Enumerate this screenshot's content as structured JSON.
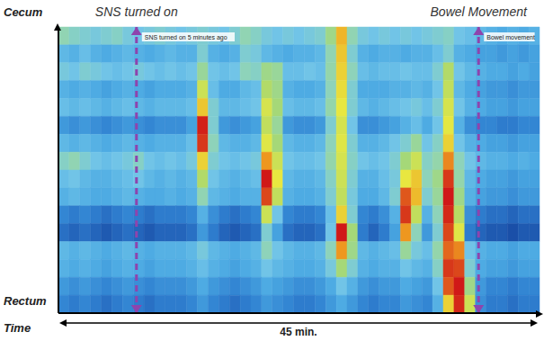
{
  "chart_data": {
    "type": "heatmap",
    "xlabel": "Time",
    "duration_label": "45 min.",
    "y_labels": {
      "top": "Cecum",
      "bottom": "Rectum"
    },
    "xlim": [
      0,
      45
    ],
    "ylim": [
      0,
      16
    ],
    "tick_labels": false,
    "annotations": [
      {
        "x": 7.3,
        "text": "SNS turned on",
        "note": "SNS turned on 5 minutes ago"
      },
      {
        "x": 39.3,
        "text": "Bowel Movement",
        "note": "Bowel movement"
      }
    ],
    "cells": [
      [
        45,
        42,
        40,
        38,
        40,
        42,
        38,
        36,
        38,
        40,
        38,
        36,
        38,
        40,
        38,
        36,
        40,
        45,
        42,
        38,
        36,
        38,
        36,
        38,
        40,
        50,
        75,
        45,
        38,
        36,
        38,
        36,
        38,
        36,
        38,
        40,
        42,
        36,
        34,
        32,
        30,
        28,
        30,
        28,
        30
      ],
      [
        32,
        30,
        34,
        30,
        28,
        30,
        32,
        30,
        28,
        30,
        32,
        30,
        30,
        40,
        30,
        28,
        30,
        40,
        38,
        32,
        30,
        28,
        30,
        30,
        32,
        45,
        72,
        40,
        30,
        28,
        30,
        30,
        28,
        30,
        30,
        34,
        40,
        30,
        28,
        26,
        26,
        24,
        26,
        24,
        26
      ],
      [
        38,
        36,
        40,
        38,
        36,
        34,
        36,
        38,
        36,
        34,
        36,
        34,
        36,
        48,
        36,
        34,
        36,
        44,
        42,
        50,
        48,
        34,
        34,
        36,
        34,
        46,
        70,
        44,
        34,
        32,
        34,
        34,
        36,
        34,
        34,
        40,
        55,
        36,
        32,
        30,
        28,
        28,
        26,
        28,
        26
      ],
      [
        30,
        28,
        30,
        28,
        26,
        28,
        30,
        28,
        26,
        28,
        28,
        28,
        30,
        60,
        34,
        28,
        28,
        32,
        34,
        55,
        50,
        30,
        28,
        28,
        30,
        44,
        68,
        40,
        28,
        28,
        28,
        30,
        30,
        32,
        30,
        36,
        58,
        32,
        28,
        26,
        24,
        24,
        22,
        24,
        24
      ],
      [
        34,
        32,
        34,
        32,
        30,
        32,
        34,
        32,
        30,
        32,
        32,
        32,
        34,
        72,
        40,
        32,
        32,
        34,
        36,
        62,
        52,
        34,
        32,
        32,
        34,
        46,
        66,
        40,
        32,
        30,
        32,
        34,
        36,
        38,
        34,
        40,
        62,
        36,
        30,
        28,
        26,
        26,
        24,
        26,
        26
      ],
      [
        24,
        22,
        24,
        22,
        20,
        22,
        24,
        22,
        20,
        22,
        22,
        22,
        26,
        95,
        40,
        24,
        22,
        24,
        26,
        58,
        48,
        24,
        22,
        22,
        24,
        40,
        62,
        36,
        22,
        22,
        24,
        26,
        30,
        34,
        28,
        36,
        65,
        30,
        22,
        20,
        20,
        18,
        18,
        20,
        20
      ],
      [
        32,
        30,
        32,
        30,
        28,
        30,
        32,
        30,
        28,
        30,
        30,
        30,
        34,
        92,
        44,
        32,
        30,
        30,
        32,
        64,
        52,
        32,
        30,
        30,
        32,
        44,
        64,
        40,
        30,
        30,
        32,
        36,
        40,
        48,
        36,
        42,
        70,
        36,
        30,
        28,
        26,
        26,
        24,
        26,
        26
      ],
      [
        42,
        45,
        40,
        36,
        34,
        36,
        38,
        42,
        36,
        34,
        36,
        34,
        38,
        70,
        40,
        36,
        34,
        36,
        38,
        80,
        60,
        36,
        34,
        34,
        36,
        46,
        62,
        42,
        36,
        34,
        36,
        40,
        52,
        60,
        42,
        46,
        82,
        44,
        36,
        32,
        30,
        30,
        28,
        30,
        28
      ],
      [
        34,
        36,
        32,
        30,
        30,
        32,
        34,
        36,
        32,
        30,
        32,
        30,
        32,
        55,
        36,
        32,
        30,
        32,
        34,
        96,
        66,
        32,
        30,
        30,
        32,
        42,
        60,
        40,
        30,
        30,
        34,
        38,
        66,
        72,
        44,
        50,
        92,
        46,
        32,
        28,
        26,
        26,
        24,
        26,
        26
      ],
      [
        30,
        32,
        30,
        28,
        28,
        30,
        32,
        30,
        28,
        28,
        30,
        28,
        30,
        45,
        32,
        30,
        28,
        30,
        30,
        90,
        58,
        30,
        28,
        28,
        30,
        40,
        58,
        38,
        28,
        28,
        32,
        40,
        88,
        74,
        40,
        48,
        96,
        50,
        30,
        26,
        24,
        24,
        22,
        24,
        24
      ],
      [
        20,
        18,
        20,
        18,
        16,
        18,
        20,
        18,
        16,
        18,
        18,
        18,
        20,
        30,
        22,
        18,
        16,
        18,
        20,
        60,
        36,
        20,
        18,
        18,
        20,
        34,
        70,
        40,
        20,
        18,
        22,
        30,
        92,
        58,
        30,
        44,
        94,
        56,
        22,
        18,
        16,
        16,
        14,
        16,
        16
      ],
      [
        16,
        14,
        16,
        14,
        12,
        14,
        16,
        14,
        12,
        14,
        14,
        14,
        16,
        24,
        18,
        14,
        12,
        14,
        16,
        40,
        26,
        16,
        14,
        14,
        16,
        36,
        96,
        52,
        18,
        14,
        18,
        26,
        80,
        44,
        24,
        40,
        90,
        64,
        18,
        14,
        12,
        12,
        10,
        12,
        12
      ],
      [
        32,
        30,
        32,
        30,
        28,
        30,
        32,
        30,
        28,
        30,
        30,
        30,
        32,
        38,
        32,
        30,
        28,
        30,
        32,
        44,
        36,
        32,
        30,
        30,
        32,
        44,
        80,
        50,
        32,
        30,
        32,
        34,
        48,
        38,
        34,
        46,
        86,
        82,
        36,
        30,
        28,
        28,
        26,
        28,
        28
      ],
      [
        30,
        28,
        30,
        28,
        26,
        28,
        30,
        28,
        26,
        28,
        28,
        28,
        30,
        34,
        30,
        28,
        26,
        28,
        30,
        36,
        32,
        30,
        28,
        28,
        30,
        38,
        52,
        40,
        30,
        28,
        30,
        30,
        36,
        32,
        30,
        42,
        92,
        90,
        40,
        28,
        26,
        26,
        24,
        26,
        26
      ],
      [
        24,
        22,
        24,
        22,
        20,
        22,
        24,
        22,
        20,
        22,
        22,
        22,
        24,
        28,
        24,
        22,
        20,
        22,
        24,
        28,
        26,
        24,
        22,
        22,
        24,
        28,
        36,
        30,
        24,
        22,
        24,
        24,
        28,
        26,
        24,
        36,
        88,
        96,
        50,
        24,
        20,
        20,
        18,
        20,
        20
      ],
      [
        20,
        18,
        20,
        18,
        16,
        18,
        20,
        18,
        16,
        18,
        18,
        18,
        20,
        24,
        20,
        18,
        16,
        18,
        20,
        24,
        22,
        20,
        18,
        18,
        20,
        24,
        28,
        24,
        20,
        18,
        20,
        20,
        24,
        22,
        20,
        30,
        70,
        94,
        60,
        22,
        18,
        18,
        16,
        18,
        18
      ]
    ]
  }
}
